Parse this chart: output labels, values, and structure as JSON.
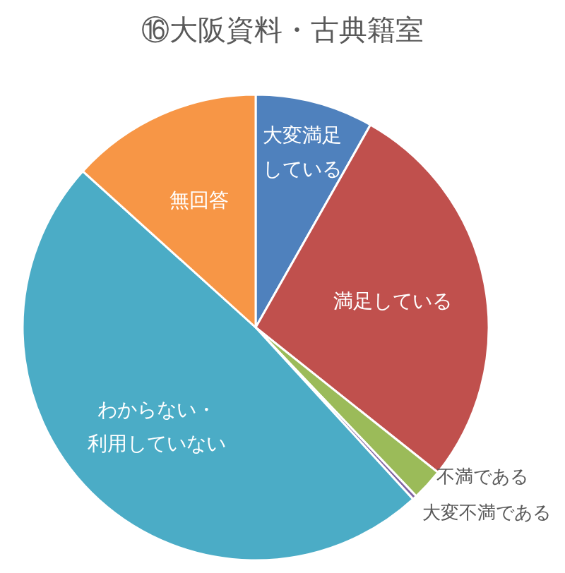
{
  "chart_data": {
    "type": "pie",
    "title": "⑯大阪資料・古典籍室",
    "categories": [
      "大変満足している",
      "満足している",
      "不満である",
      "大変不満である",
      "わからない・利用していない",
      "無回答"
    ],
    "values": [
      8.2,
      27.5,
      2.2,
      0.3,
      48.5,
      13.3
    ],
    "colors": [
      "#4f81bd",
      "#c0504d",
      "#9bbb59",
      "#8064a2",
      "#4bacc6",
      "#f79646"
    ],
    "legend": false
  }
}
